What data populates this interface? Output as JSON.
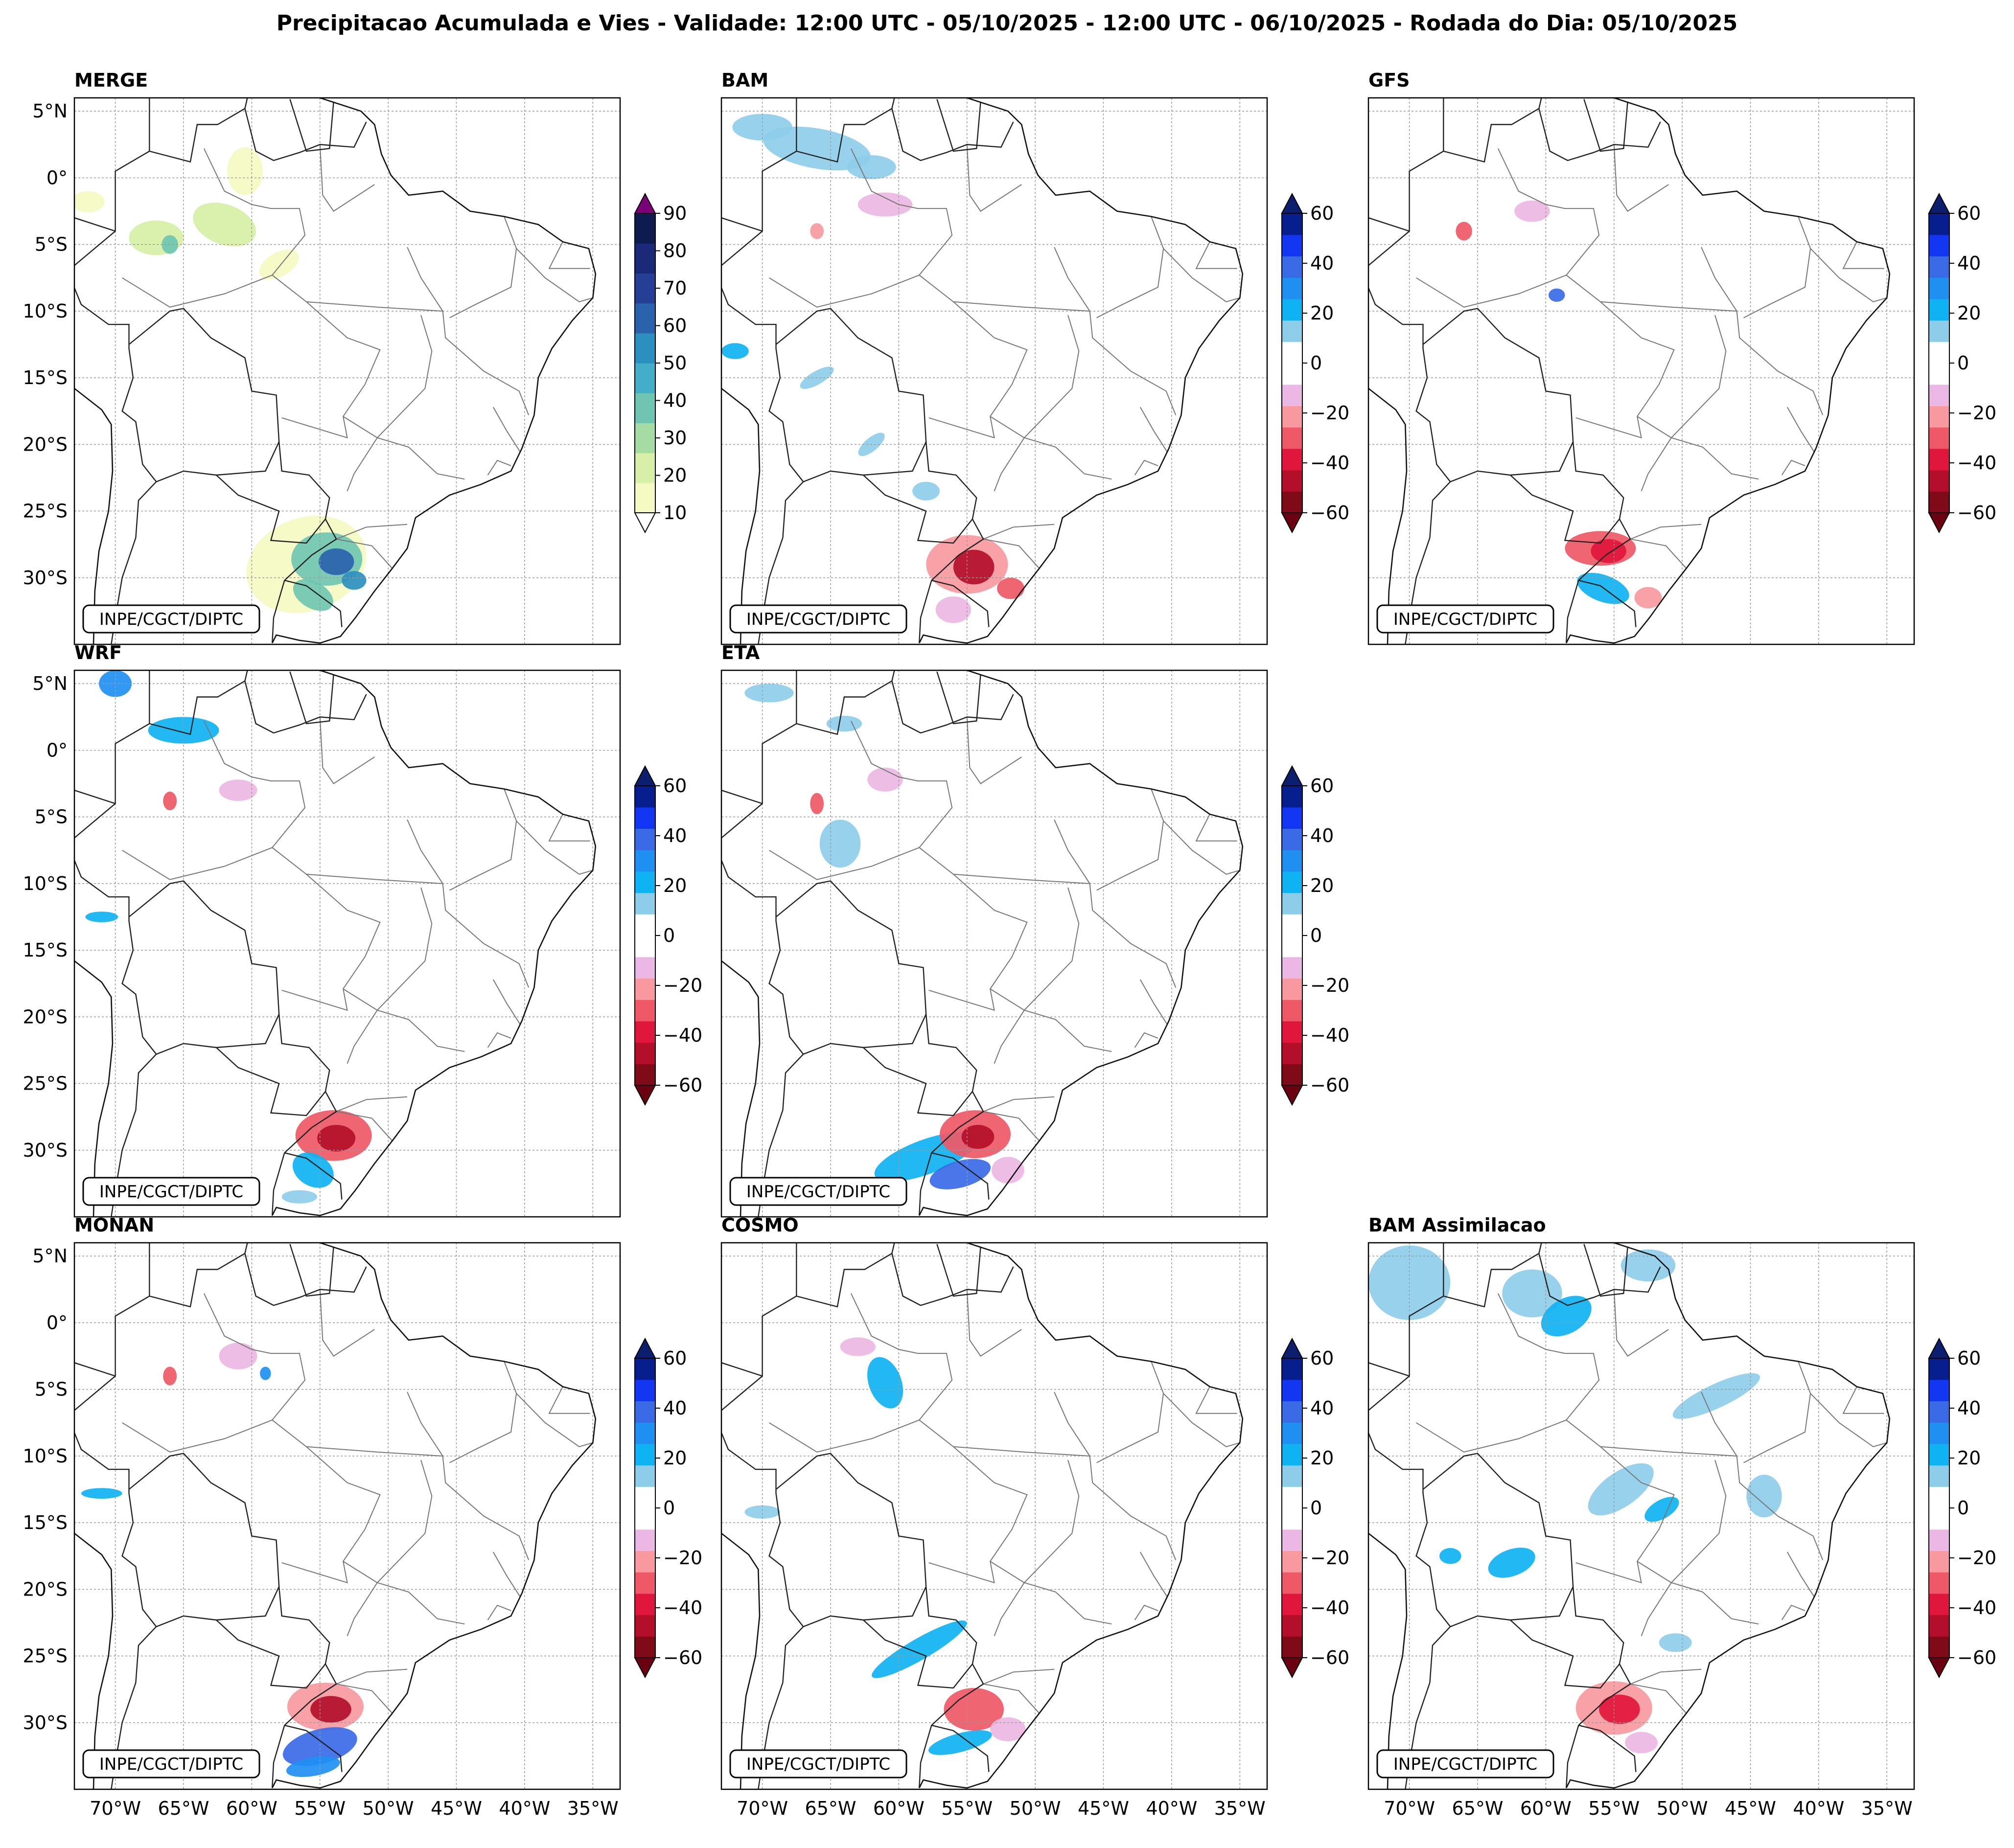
{
  "title": "Precipitacao Acumulada e Vies - Validade: 12:00 UTC - 05/10/2025 - 12:00 UTC - 06/10/2025 - Rodada do Dia: 05/10/2025",
  "credit": "INPE/CGCT/DIPTC",
  "colors": {
    "merge": [
      "#f4fac2",
      "#d7efa6",
      "#a4dca4",
      "#6fc5b2",
      "#44aec8",
      "#2b8fc0",
      "#2a63ac",
      "#253f96",
      "#1b2a78",
      "#0d1b4f"
    ],
    "merge_over": "#7a0177",
    "bias": [
      "#7f0a18",
      "#b40f2a",
      "#e0163c",
      "#ef5866",
      "#f7999e",
      "#ebb7e4",
      "#ffffff",
      "#ffffff",
      "#8ecdea",
      "#0fb2f2",
      "#1f8ff2",
      "#3a6ae6",
      "#1236f2",
      "#071e8f"
    ],
    "bias_under": "#6b0010",
    "bias_over": "#0b1f6e"
  },
  "chart_data": [
    {
      "type": "heatmap",
      "title": "MERGE",
      "scale": "merge",
      "colorbar_ticks": [
        "10",
        "20",
        "30",
        "40",
        "50",
        "60",
        "70",
        "80",
        "90"
      ],
      "colorbar_range": [
        10,
        90
      ]
    },
    {
      "type": "heatmap",
      "title": "BAM",
      "scale": "bias",
      "colorbar_ticks": [
        "60",
        "40",
        "20",
        "0",
        "−20",
        "−40",
        "−60"
      ],
      "colorbar_range": [
        -60,
        60
      ]
    },
    {
      "type": "heatmap",
      "title": "GFS",
      "scale": "bias",
      "colorbar_ticks": [
        "60",
        "40",
        "20",
        "0",
        "−20",
        "−40",
        "−60"
      ],
      "colorbar_range": [
        -60,
        60
      ]
    },
    {
      "type": "heatmap",
      "title": "WRF",
      "scale": "bias",
      "colorbar_ticks": [
        "60",
        "40",
        "20",
        "0",
        "−20",
        "−40",
        "−60"
      ],
      "colorbar_range": [
        -60,
        60
      ]
    },
    {
      "type": "heatmap",
      "title": "ETA",
      "scale": "bias",
      "colorbar_ticks": [
        "60",
        "40",
        "20",
        "0",
        "−20",
        "−40",
        "−60"
      ],
      "colorbar_range": [
        -60,
        60
      ]
    },
    {
      "type": "heatmap",
      "title": "MONAN",
      "scale": "bias",
      "colorbar_ticks": [
        "60",
        "40",
        "20",
        "0",
        "−20",
        "−40",
        "−60"
      ],
      "colorbar_range": [
        -60,
        60
      ]
    },
    {
      "type": "heatmap",
      "title": "COSMO",
      "scale": "bias",
      "colorbar_ticks": [
        "60",
        "40",
        "20",
        "0",
        "−20",
        "−40",
        "−60"
      ],
      "colorbar_range": [
        -60,
        60
      ]
    },
    {
      "type": "heatmap",
      "title": "BAM Assimilacao",
      "scale": "bias",
      "colorbar_ticks": [
        "60",
        "40",
        "20",
        "0",
        "−20",
        "−40",
        "−60"
      ],
      "colorbar_range": [
        -60,
        60
      ]
    }
  ],
  "lat_labels": [
    "5°N",
    "0°",
    "5°S",
    "10°S",
    "15°S",
    "20°S",
    "25°S",
    "30°S"
  ],
  "lat_values": [
    5,
    0,
    -5,
    -10,
    -15,
    -20,
    -25,
    -30
  ],
  "lon_labels": [
    "70°W",
    "65°W",
    "60°W",
    "55°W",
    "50°W",
    "45°W",
    "40°W",
    "35°W"
  ],
  "lon_values": [
    -70,
    -65,
    -60,
    -55,
    -50,
    -45,
    -40,
    -35
  ],
  "extent": {
    "lon": [
      -73,
      -33
    ],
    "lat": [
      -35,
      6
    ]
  }
}
